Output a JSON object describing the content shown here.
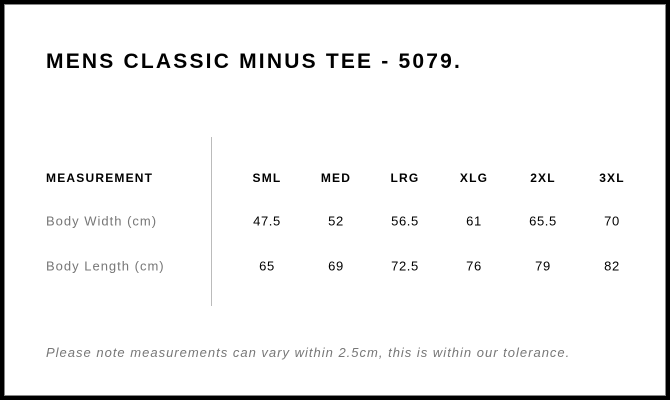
{
  "title": "MENS CLASSIC MINUS TEE - 5079.",
  "table": {
    "header_label": "MEASUREMENT",
    "sizes": [
      "SML",
      "MED",
      "LRG",
      "XLG",
      "2XL",
      "3XL"
    ],
    "rows": [
      {
        "label": "Body Width (cm)",
        "values": [
          "47.5",
          "52",
          "56.5",
          "61",
          "65.5",
          "70"
        ]
      },
      {
        "label": "Body Length (cm)",
        "values": [
          "65",
          "69",
          "72.5",
          "76",
          "79",
          "82"
        ]
      }
    ]
  },
  "note": "Please note measurements can vary within 2.5cm, this is within our tolerance."
}
